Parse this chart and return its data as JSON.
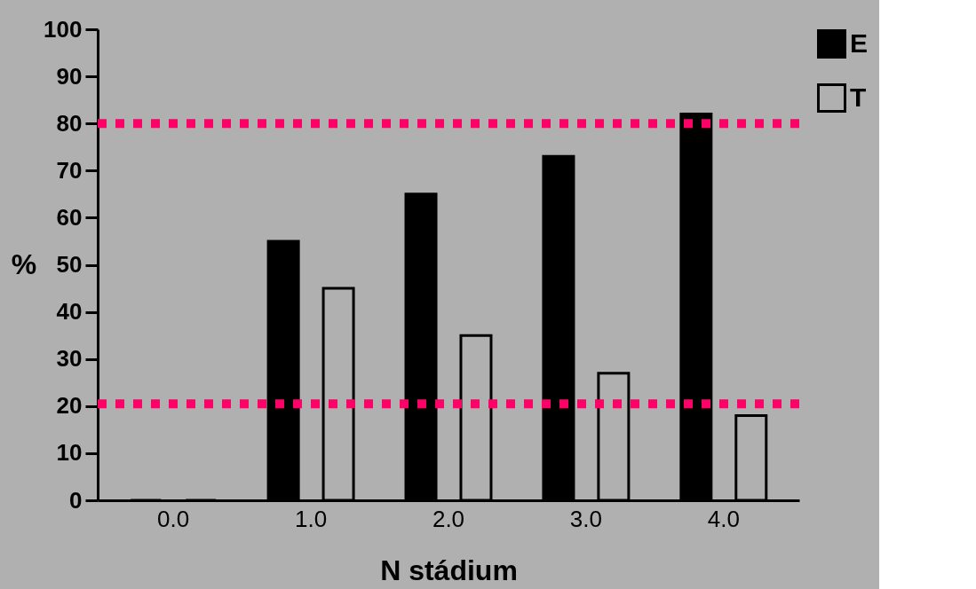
{
  "chart_data": {
    "type": "bar",
    "xlabel": "N stádium",
    "ylabel": "%",
    "categories": [
      "0.0",
      "1.0",
      "2.0",
      "3.0",
      "4.0"
    ],
    "series": [
      {
        "name": "E",
        "color": "#000000",
        "values": [
          0,
          55,
          65,
          73,
          82
        ]
      },
      {
        "name": "T",
        "color": "#b0b0b0",
        "values": [
          0,
          45,
          35,
          27,
          18
        ]
      }
    ],
    "ylim": [
      0,
      100
    ],
    "yticks": [
      0,
      10,
      20,
      30,
      40,
      50,
      60,
      70,
      80,
      90,
      100
    ],
    "ref_lines": [
      {
        "axis": "y",
        "value": 80,
        "color": "#ff0066",
        "line_style": "dotted"
      },
      {
        "axis": "y",
        "value": 20.5,
        "color": "#ff0066",
        "line_style": "dotted"
      }
    ],
    "grid": false,
    "legend": "top right"
  }
}
